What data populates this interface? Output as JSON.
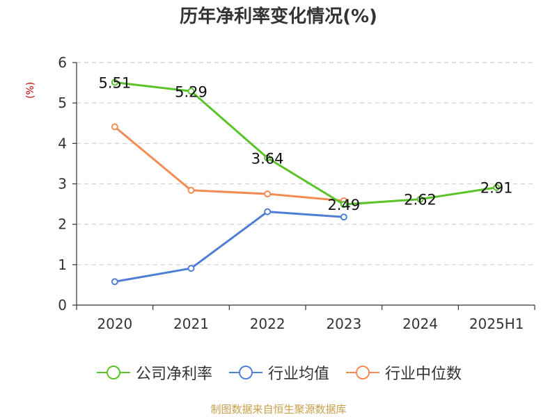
{
  "title": "历年净利率变化情况(%)",
  "source_note": "制图数据来自恒生聚源数据库",
  "chart_data": {
    "type": "line",
    "title": "历年净利率变化情况(%)",
    "ylabel": "(%)",
    "xlabel": "",
    "categories": [
      "2020",
      "2021",
      "2022",
      "2023",
      "2024",
      "2025H1"
    ],
    "ylim": [
      0,
      6
    ],
    "yticks": [
      0,
      1,
      2,
      3,
      4,
      5,
      6
    ],
    "grid": true,
    "legend_position": "bottom",
    "series": [
      {
        "name": "公司净利率",
        "color": "#5bc22a",
        "values": [
          5.51,
          5.29,
          3.64,
          2.49,
          2.62,
          2.91
        ],
        "labels": [
          "5.51",
          "5.29",
          "3.64",
          "2.49",
          "2.62",
          "2.91"
        ]
      },
      {
        "name": "行业均值",
        "color": "#4f7fd4",
        "values": [
          0.58,
          0.91,
          2.31,
          2.18,
          null,
          null
        ]
      },
      {
        "name": "行业中位数",
        "color": "#f28b54",
        "values": [
          4.41,
          2.84,
          2.75,
          2.58,
          null,
          null
        ]
      }
    ]
  }
}
